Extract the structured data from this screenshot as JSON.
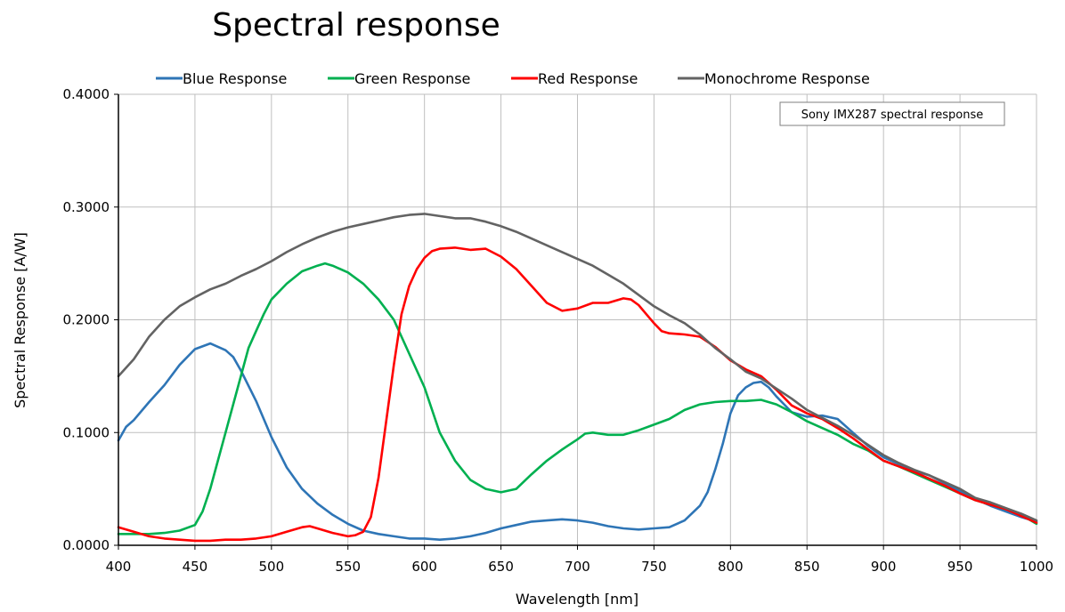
{
  "chart_data": {
    "type": "line",
    "title": "Spectral response",
    "xlabel": "Wavelength [nm]",
    "ylabel": "Spectral Response [A/W]",
    "xlim": [
      400,
      1000
    ],
    "ylim": [
      0,
      0.4
    ],
    "x_ticks": [
      400,
      450,
      500,
      550,
      600,
      650,
      700,
      750,
      800,
      850,
      900,
      950,
      1000
    ],
    "y_ticks": [
      0.0,
      0.1,
      0.2,
      0.3,
      0.4
    ],
    "y_tick_labels": [
      "0.0000",
      "0.1000",
      "0.2000",
      "0.3000",
      "0.4000"
    ],
    "grid": true,
    "legend_position": "top",
    "annotation": "Sony IMX287 spectral response",
    "series": [
      {
        "name": "Blue Response",
        "color": "#2E75B6",
        "x": [
          400,
          405,
          410,
          420,
          430,
          440,
          450,
          460,
          470,
          475,
          480,
          490,
          500,
          510,
          520,
          530,
          540,
          550,
          560,
          570,
          580,
          590,
          600,
          610,
          620,
          630,
          640,
          650,
          660,
          670,
          680,
          690,
          700,
          710,
          720,
          730,
          740,
          750,
          760,
          770,
          780,
          785,
          790,
          795,
          800,
          805,
          810,
          815,
          820,
          825,
          830,
          840,
          850,
          860,
          870,
          880,
          890,
          900,
          910,
          920,
          930,
          940,
          950,
          960,
          970,
          980,
          990,
          1000
        ],
        "y": [
          0.093,
          0.105,
          0.111,
          0.127,
          0.142,
          0.16,
          0.174,
          0.179,
          0.173,
          0.167,
          0.155,
          0.128,
          0.096,
          0.069,
          0.05,
          0.037,
          0.027,
          0.019,
          0.013,
          0.01,
          0.008,
          0.006,
          0.006,
          0.005,
          0.006,
          0.008,
          0.011,
          0.015,
          0.018,
          0.021,
          0.022,
          0.023,
          0.022,
          0.02,
          0.017,
          0.015,
          0.014,
          0.015,
          0.016,
          0.022,
          0.035,
          0.047,
          0.067,
          0.09,
          0.117,
          0.133,
          0.14,
          0.144,
          0.145,
          0.14,
          0.132,
          0.118,
          0.114,
          0.115,
          0.112,
          0.1,
          0.088,
          0.078,
          0.072,
          0.066,
          0.062,
          0.055,
          0.048,
          0.041,
          0.035,
          0.03,
          0.025,
          0.021
        ]
      },
      {
        "name": "Green Response",
        "color": "#00B050",
        "x": [
          400,
          410,
          420,
          430,
          440,
          450,
          455,
          460,
          465,
          470,
          475,
          480,
          485,
          490,
          495,
          500,
          510,
          520,
          530,
          535,
          540,
          550,
          560,
          570,
          580,
          585,
          590,
          600,
          610,
          620,
          630,
          640,
          650,
          660,
          670,
          680,
          690,
          700,
          705,
          710,
          720,
          730,
          740,
          750,
          760,
          770,
          780,
          790,
          800,
          810,
          820,
          830,
          840,
          850,
          860,
          870,
          880,
          890,
          900,
          910,
          920,
          930,
          940,
          950,
          960,
          970,
          980,
          990,
          1000
        ],
        "y": [
          0.01,
          0.01,
          0.01,
          0.011,
          0.013,
          0.018,
          0.03,
          0.05,
          0.075,
          0.1,
          0.125,
          0.15,
          0.175,
          0.19,
          0.205,
          0.218,
          0.232,
          0.243,
          0.248,
          0.25,
          0.248,
          0.242,
          0.232,
          0.218,
          0.2,
          0.185,
          0.17,
          0.14,
          0.1,
          0.075,
          0.058,
          0.05,
          0.047,
          0.05,
          0.063,
          0.075,
          0.085,
          0.094,
          0.099,
          0.1,
          0.098,
          0.098,
          0.102,
          0.107,
          0.112,
          0.12,
          0.125,
          0.127,
          0.128,
          0.128,
          0.129,
          0.125,
          0.118,
          0.11,
          0.104,
          0.098,
          0.09,
          0.084,
          0.075,
          0.07,
          0.064,
          0.058,
          0.052,
          0.046,
          0.04,
          0.036,
          0.032,
          0.027,
          0.019
        ]
      },
      {
        "name": "Red Response",
        "color": "#FF0000",
        "x": [
          400,
          410,
          420,
          430,
          440,
          450,
          460,
          470,
          480,
          490,
          500,
          510,
          520,
          525,
          530,
          540,
          550,
          555,
          560,
          565,
          570,
          575,
          580,
          585,
          590,
          595,
          600,
          605,
          610,
          620,
          630,
          640,
          650,
          660,
          670,
          680,
          690,
          700,
          710,
          720,
          730,
          735,
          740,
          745,
          750,
          755,
          760,
          770,
          780,
          790,
          800,
          810,
          820,
          830,
          840,
          850,
          860,
          870,
          880,
          890,
          900,
          910,
          920,
          930,
          940,
          950,
          960,
          970,
          980,
          990,
          1000
        ],
        "y": [
          0.016,
          0.012,
          0.008,
          0.006,
          0.005,
          0.004,
          0.004,
          0.005,
          0.005,
          0.006,
          0.008,
          0.012,
          0.016,
          0.017,
          0.015,
          0.011,
          0.008,
          0.009,
          0.012,
          0.025,
          0.06,
          0.11,
          0.16,
          0.205,
          0.23,
          0.245,
          0.255,
          0.261,
          0.263,
          0.264,
          0.262,
          0.263,
          0.256,
          0.245,
          0.23,
          0.215,
          0.208,
          0.21,
          0.215,
          0.215,
          0.219,
          0.218,
          0.213,
          0.205,
          0.197,
          0.19,
          0.188,
          0.187,
          0.185,
          0.176,
          0.164,
          0.156,
          0.15,
          0.138,
          0.124,
          0.117,
          0.112,
          0.104,
          0.095,
          0.085,
          0.075,
          0.07,
          0.065,
          0.059,
          0.053,
          0.046,
          0.04,
          0.036,
          0.032,
          0.026,
          0.02
        ]
      },
      {
        "name": "Monochrome Response",
        "color": "#636363",
        "x": [
          400,
          410,
          420,
          430,
          440,
          450,
          460,
          470,
          480,
          490,
          500,
          510,
          520,
          530,
          540,
          550,
          560,
          570,
          580,
          590,
          600,
          610,
          620,
          630,
          640,
          650,
          660,
          670,
          680,
          690,
          700,
          710,
          720,
          730,
          740,
          750,
          760,
          770,
          780,
          790,
          800,
          810,
          820,
          830,
          840,
          850,
          860,
          870,
          880,
          890,
          900,
          910,
          920,
          930,
          940,
          950,
          960,
          970,
          980,
          990,
          1000
        ],
        "y": [
          0.15,
          0.165,
          0.185,
          0.2,
          0.212,
          0.22,
          0.227,
          0.232,
          0.239,
          0.245,
          0.252,
          0.26,
          0.267,
          0.273,
          0.278,
          0.282,
          0.285,
          0.288,
          0.291,
          0.293,
          0.294,
          0.292,
          0.29,
          0.29,
          0.287,
          0.283,
          0.278,
          0.272,
          0.266,
          0.26,
          0.254,
          0.248,
          0.24,
          0.232,
          0.222,
          0.212,
          0.204,
          0.197,
          0.187,
          0.175,
          0.165,
          0.154,
          0.148,
          0.139,
          0.13,
          0.12,
          0.113,
          0.106,
          0.098,
          0.089,
          0.08,
          0.073,
          0.067,
          0.062,
          0.056,
          0.05,
          0.042,
          0.038,
          0.033,
          0.028,
          0.022
        ]
      }
    ]
  }
}
